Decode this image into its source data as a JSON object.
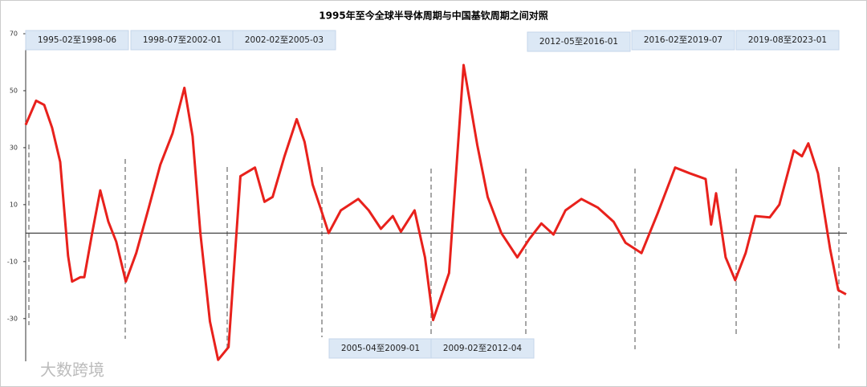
{
  "chart_data": {
    "type": "line",
    "title": "1995年至今全球半导体周期与中国基钦周期之间对照",
    "xlim": [
      1995,
      2023.3
    ],
    "ylim": [
      -45,
      70
    ],
    "yticks": [
      70,
      50,
      30,
      10,
      -10,
      -30
    ],
    "series": [
      {
        "color": "#e8211c",
        "x": [
          1995.0,
          1995.36,
          1995.64,
          1995.91,
          1996.19,
          1996.46,
          1996.6,
          1996.88,
          1997.02,
          1997.29,
          1997.57,
          1997.85,
          1998.12,
          1998.45,
          1998.81,
          1999.23,
          1999.64,
          2000.06,
          2000.47,
          2000.75,
          2001.02,
          2001.35,
          2001.63,
          2001.99,
          2002.4,
          2002.9,
          2003.23,
          2003.51,
          2003.92,
          2004.34,
          2004.61,
          2004.89,
          2005.17,
          2005.44,
          2005.86,
          2006.46,
          2006.82,
          2007.24,
          2007.65,
          2007.93,
          2008.4,
          2008.76,
          2009.04,
          2009.59,
          2010.09,
          2010.56,
          2010.92,
          2011.39,
          2011.94,
          2012.36,
          2012.77,
          2013.19,
          2013.6,
          2014.15,
          2014.71,
          2015.26,
          2015.67,
          2016.22,
          2016.78,
          2017.38,
          2017.88,
          2018.43,
          2018.62,
          2018.79,
          2019.12,
          2019.45,
          2019.81,
          2020.14,
          2020.64,
          2020.97,
          2021.47,
          2021.75,
          2021.97,
          2022.3,
          2022.72,
          2023.0,
          2023.27
        ],
        "values": [
          38,
          46.5,
          45,
          37,
          25,
          -8,
          -17,
          -15.5,
          -15.5,
          0,
          15,
          4,
          -3,
          -17,
          -7,
          8.5,
          24,
          35,
          51,
          34,
          0,
          -31,
          -44.5,
          -40,
          20,
          23,
          11,
          12.7,
          27,
          40,
          32,
          17,
          8.5,
          0,
          8,
          12,
          8,
          1.5,
          6,
          0.5,
          8,
          -8.5,
          -30.5,
          -14,
          59,
          31,
          12.7,
          0,
          -8.5,
          -2,
          3.4,
          -0.5,
          8,
          12,
          9,
          4,
          -3.4,
          -7,
          7,
          23,
          21,
          19,
          3,
          14,
          -8.5,
          -16.5,
          -7,
          6,
          5.5,
          10,
          29,
          27,
          31.5,
          21,
          -5.5,
          -20,
          -21.5
        ]
      }
    ],
    "periods": [
      "1995-02至1998-06",
      "1998-07至2002-01",
      "2002-02至2005-03",
      "2005-04至2009-01",
      "2009-02至2012-04",
      "2012-05至2016-01",
      "2016-02至2019-07",
      "2019-08至2023-01"
    ],
    "watermark": "大数跨境"
  }
}
